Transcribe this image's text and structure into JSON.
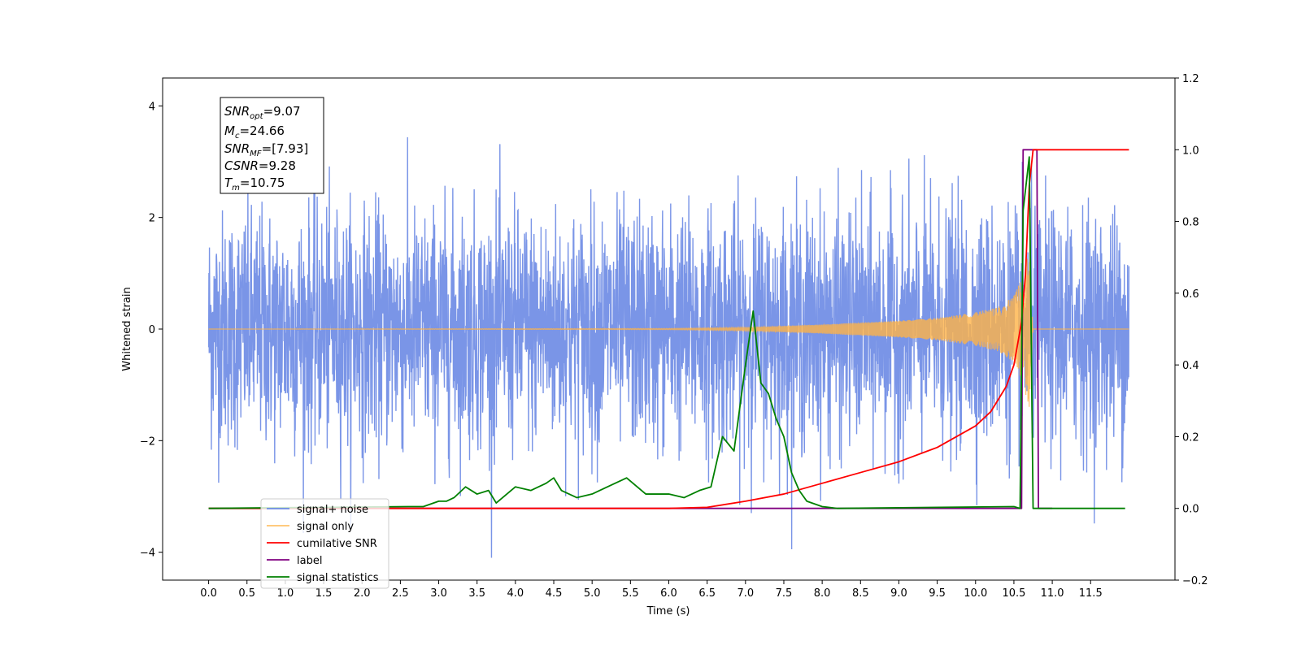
{
  "chart_data": {
    "type": "line",
    "title": "",
    "xlabel": "Time (s)",
    "ylabel": "Whitened strain",
    "xlim": [
      -0.6,
      12.6
    ],
    "ylim": [
      -4.5,
      4.5
    ],
    "y2lim": [
      -0.2,
      1.2
    ],
    "grid": false,
    "legend_position": "lower-left",
    "x_ticks": [
      "0.0",
      "0.5",
      "1.0",
      "1.5",
      "2.0",
      "2.5",
      "3.0",
      "3.5",
      "4.0",
      "4.5",
      "5.0",
      "5.5",
      "6.0",
      "6.5",
      "7.0",
      "7.5",
      "8.0",
      "8.5",
      "9.0",
      "9.5",
      "10.0",
      "10.5",
      "11.0",
      "11.5"
    ],
    "y_ticks": [
      "−4",
      "−2",
      "0",
      "2",
      "4"
    ],
    "y2_ticks": [
      "−0.2",
      "0.0",
      "0.2",
      "0.4",
      "0.6",
      "0.8",
      "1.0",
      "1.2"
    ],
    "annotation": {
      "snr_opt": "=9.07",
      "mc": "=24.66",
      "snr_mf": "=[7.93]",
      "csnr": "=9.28",
      "tm": "=10.75"
    },
    "colors": {
      "signal_noise": "#6c8ae4",
      "signal_only": "#ffb347",
      "cumulative_snr": "#ff0000",
      "label": "#800080",
      "signal_statistics": "#008000"
    },
    "series": [
      {
        "name": "signal+ noise",
        "axis": "left",
        "style": "noise",
        "x_range": [
          0.0,
          12.0
        ],
        "envelope_approx": [
          -3.2,
          3.3
        ]
      },
      {
        "name": "signal only",
        "axis": "left",
        "style": "chirp",
        "x_range": [
          0.0,
          10.75
        ],
        "amplitude": [
          [
            0.0,
            0.0
          ],
          [
            6.0,
            0.01
          ],
          [
            7.0,
            0.03
          ],
          [
            8.0,
            0.08
          ],
          [
            9.0,
            0.15
          ],
          [
            9.5,
            0.2
          ],
          [
            10.0,
            0.3
          ],
          [
            10.3,
            0.4
          ],
          [
            10.5,
            0.6
          ],
          [
            10.6,
            0.9
          ],
          [
            10.7,
            1.4
          ],
          [
            10.75,
            0.0
          ]
        ]
      },
      {
        "name": "cumilative SNR",
        "axis": "right",
        "x": [
          0.0,
          6.0,
          6.5,
          7.0,
          7.5,
          8.0,
          8.5,
          9.0,
          9.5,
          10.0,
          10.2,
          10.4,
          10.5,
          10.6,
          10.65,
          10.7,
          10.75,
          12.0
        ],
        "y": [
          0.0,
          0.0,
          0.003,
          0.02,
          0.04,
          0.07,
          0.1,
          0.13,
          0.17,
          0.23,
          0.27,
          0.34,
          0.4,
          0.52,
          0.65,
          0.9,
          1.0,
          1.0
        ]
      },
      {
        "name": "label",
        "axis": "right",
        "x": [
          0.0,
          10.6,
          10.62,
          10.8,
          10.82,
          11.0
        ],
        "y": [
          0.0,
          0.0,
          1.0,
          1.0,
          0.0,
          0.0
        ]
      },
      {
        "name": "signal statistics",
        "axis": "right",
        "x": [
          0.0,
          2.6,
          2.8,
          3.0,
          3.1,
          3.2,
          3.35,
          3.5,
          3.65,
          3.75,
          4.0,
          4.2,
          4.4,
          4.5,
          4.6,
          4.8,
          5.0,
          5.2,
          5.45,
          5.7,
          6.0,
          6.2,
          6.4,
          6.55,
          6.7,
          6.85,
          7.0,
          7.1,
          7.2,
          7.3,
          7.4,
          7.5,
          7.6,
          7.7,
          7.8,
          8.0,
          8.2,
          10.5,
          10.58,
          10.62,
          10.7,
          10.75,
          10.8,
          11.95
        ],
        "y": [
          0.0,
          0.005,
          0.005,
          0.02,
          0.02,
          0.03,
          0.06,
          0.04,
          0.05,
          0.015,
          0.06,
          0.05,
          0.07,
          0.085,
          0.05,
          0.03,
          0.04,
          0.06,
          0.085,
          0.04,
          0.04,
          0.03,
          0.05,
          0.06,
          0.2,
          0.16,
          0.4,
          0.55,
          0.35,
          0.32,
          0.25,
          0.2,
          0.1,
          0.05,
          0.02,
          0.005,
          0.0,
          0.005,
          0.0,
          0.83,
          0.98,
          0.0,
          0.0,
          0.0
        ]
      }
    ]
  }
}
